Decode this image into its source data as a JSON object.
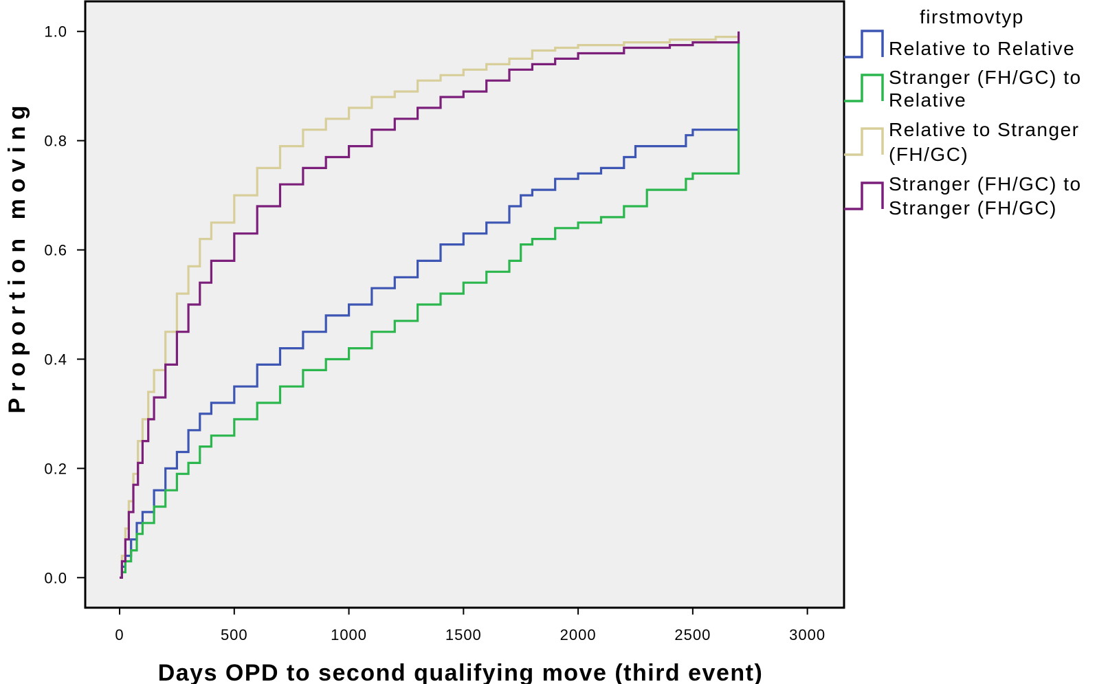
{
  "chart_data": {
    "type": "line",
    "step": true,
    "xlabel": "Days OPD to second qualifying move (third event)",
    "ylabel": "Proportion moving",
    "xlim": [
      -150,
      3160
    ],
    "ylim": [
      -0.055,
      1.055
    ],
    "x_ticks": [
      0,
      500,
      1000,
      1500,
      2000,
      2500,
      3000
    ],
    "y_ticks": [
      0.0,
      0.2,
      0.4,
      0.6,
      0.8,
      1.0
    ],
    "y_tick_labels": [
      "0.0",
      "0.2",
      "0.4",
      "0.6",
      "0.8",
      "1.0"
    ],
    "grid": false,
    "background": "#efefef",
    "legend": {
      "title": "firstmovtyp",
      "position": "right",
      "entries": [
        {
          "line1": "Relative to Relative",
          "line2": ""
        },
        {
          "line1": "Stranger (FH/GC) to",
          "line2": "Relative"
        },
        {
          "line1": "Relative to Stranger",
          "line2": "(FH/GC)"
        },
        {
          "line1": "Stranger (FH/GC) to",
          "line2": "Stranger (FH/GC)"
        }
      ]
    },
    "series": [
      {
        "name": "Relative to Relative",
        "color": "#3d56b3",
        "x": [
          0,
          10,
          25,
          50,
          75,
          100,
          150,
          200,
          250,
          300,
          350,
          400,
          500,
          600,
          700,
          800,
          900,
          1000,
          1100,
          1200,
          1300,
          1400,
          1500,
          1600,
          1700,
          1750,
          1800,
          1900,
          2000,
          2100,
          2150,
          2200,
          2250,
          2300,
          2400,
          2470,
          2500,
          2700
        ],
        "y": [
          0.0,
          0.02,
          0.04,
          0.07,
          0.1,
          0.12,
          0.16,
          0.2,
          0.23,
          0.27,
          0.3,
          0.32,
          0.35,
          0.39,
          0.42,
          0.45,
          0.48,
          0.5,
          0.53,
          0.55,
          0.58,
          0.61,
          0.63,
          0.65,
          0.68,
          0.7,
          0.71,
          0.73,
          0.74,
          0.75,
          0.75,
          0.77,
          0.79,
          0.79,
          0.79,
          0.81,
          0.82,
          0.82
        ]
      },
      {
        "name": "Stranger (FH/GC) to Relative",
        "color": "#2cb64e",
        "x": [
          0,
          10,
          25,
          50,
          75,
          100,
          150,
          200,
          250,
          300,
          350,
          400,
          500,
          600,
          700,
          800,
          900,
          1000,
          1100,
          1200,
          1300,
          1400,
          1500,
          1600,
          1700,
          1750,
          1800,
          1900,
          2000,
          2100,
          2200,
          2300,
          2400,
          2470,
          2500,
          2600,
          2700,
          2700
        ],
        "y": [
          0.0,
          0.01,
          0.03,
          0.05,
          0.08,
          0.1,
          0.13,
          0.16,
          0.19,
          0.21,
          0.24,
          0.26,
          0.29,
          0.32,
          0.35,
          0.38,
          0.4,
          0.42,
          0.45,
          0.47,
          0.5,
          0.52,
          0.54,
          0.56,
          0.58,
          0.61,
          0.62,
          0.64,
          0.65,
          0.66,
          0.68,
          0.71,
          0.71,
          0.73,
          0.74,
          0.74,
          0.74,
          0.98
        ]
      },
      {
        "name": "Relative to Stranger (FH/GC)",
        "color": "#d8ce9a",
        "x": [
          0,
          10,
          25,
          40,
          60,
          80,
          100,
          125,
          150,
          200,
          250,
          300,
          350,
          400,
          500,
          600,
          700,
          800,
          900,
          1000,
          1100,
          1200,
          1300,
          1400,
          1500,
          1600,
          1700,
          1800,
          1900,
          2000,
          2200,
          2400,
          2600,
          2700
        ],
        "y": [
          0.0,
          0.04,
          0.09,
          0.14,
          0.19,
          0.25,
          0.29,
          0.34,
          0.38,
          0.45,
          0.52,
          0.57,
          0.62,
          0.65,
          0.7,
          0.75,
          0.79,
          0.82,
          0.84,
          0.86,
          0.88,
          0.89,
          0.91,
          0.92,
          0.93,
          0.94,
          0.95,
          0.965,
          0.97,
          0.975,
          0.98,
          0.985,
          0.99,
          0.99
        ]
      },
      {
        "name": "Stranger (FH/GC) to Stranger (FH/GC)",
        "color": "#7b1f7a",
        "x": [
          0,
          10,
          25,
          40,
          60,
          80,
          100,
          125,
          150,
          200,
          250,
          300,
          350,
          400,
          500,
          600,
          700,
          800,
          900,
          1000,
          1100,
          1200,
          1300,
          1400,
          1500,
          1600,
          1700,
          1800,
          1900,
          2000,
          2100,
          2200,
          2300,
          2400,
          2500,
          2600,
          2700,
          2700
        ],
        "y": [
          0.0,
          0.03,
          0.07,
          0.12,
          0.17,
          0.21,
          0.25,
          0.29,
          0.33,
          0.39,
          0.45,
          0.5,
          0.54,
          0.58,
          0.63,
          0.68,
          0.72,
          0.75,
          0.77,
          0.79,
          0.82,
          0.84,
          0.86,
          0.88,
          0.89,
          0.91,
          0.93,
          0.94,
          0.95,
          0.96,
          0.96,
          0.97,
          0.97,
          0.975,
          0.98,
          0.98,
          0.98,
          1.0
        ]
      }
    ]
  }
}
